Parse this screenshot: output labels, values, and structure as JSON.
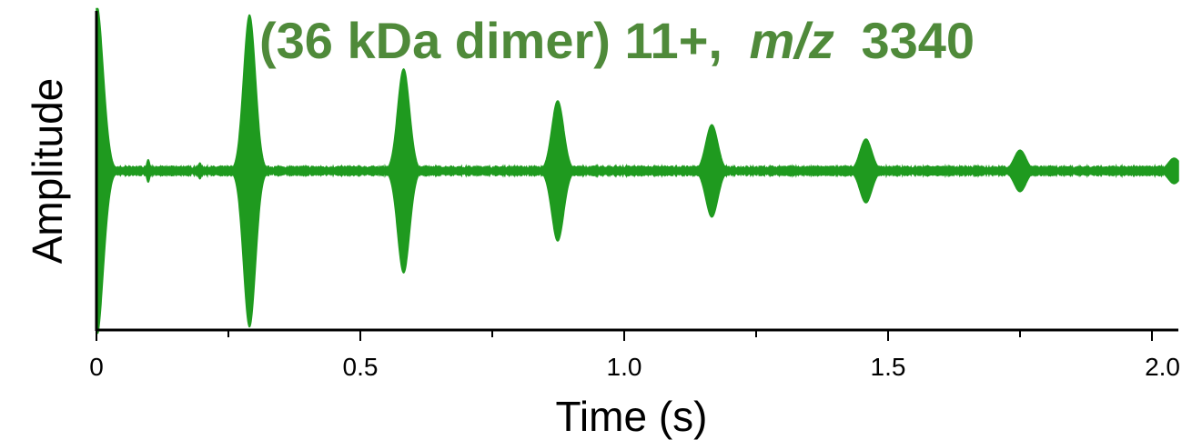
{
  "chart_data": {
    "type": "line",
    "title": {
      "prefix": "(36 kDa dimer) 11+,",
      "italic": "m/z",
      "suffix": "3340"
    },
    "xlabel": "Time (s)",
    "ylabel": "Amplitude",
    "xlim": [
      0,
      2.05
    ],
    "ylim": [
      -1,
      1
    ],
    "x_ticks": [
      {
        "value": 0,
        "label": "0"
      },
      {
        "value": 0.5,
        "label": "0.5"
      },
      {
        "value": 1.0,
        "label": "1.0"
      },
      {
        "value": 1.5,
        "label": "1.5"
      },
      {
        "value": 2.0,
        "label": "2.0"
      }
    ],
    "x_minor_ticks": [
      0.25,
      0.75,
      1.25,
      1.75
    ],
    "series": [
      {
        "color": "#1f9a1f",
        "baseline_noise": 0.03,
        "echoes": [
          {
            "t": 0.0,
            "amp": 1.05,
            "width": 0.018
          },
          {
            "t": 0.098,
            "amp": 0.07,
            "width": 0.004
          },
          {
            "t": 0.196,
            "amp": 0.05,
            "width": 0.004
          },
          {
            "t": 0.29,
            "amp": 0.98,
            "width": 0.016
          },
          {
            "t": 0.582,
            "amp": 0.64,
            "width": 0.016
          },
          {
            "t": 0.874,
            "amp": 0.44,
            "width": 0.016
          },
          {
            "t": 1.166,
            "amp": 0.29,
            "width": 0.016
          },
          {
            "t": 1.458,
            "amp": 0.2,
            "width": 0.016
          },
          {
            "t": 1.75,
            "amp": 0.13,
            "width": 0.016
          },
          {
            "t": 2.042,
            "amp": 0.08,
            "width": 0.016
          }
        ]
      }
    ],
    "title_color": "#4f8a3a",
    "grid": false,
    "legend": "none"
  }
}
